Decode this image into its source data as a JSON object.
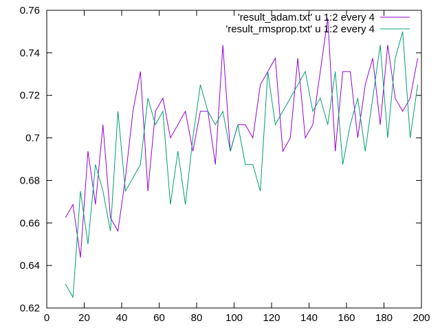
{
  "chart_data": {
    "type": "line",
    "xlim": [
      0,
      200
    ],
    "ylim": [
      0.62,
      0.76
    ],
    "x_ticks": [
      0,
      20,
      40,
      60,
      80,
      100,
      120,
      140,
      160,
      180,
      200
    ],
    "y_ticks": [
      0.62,
      0.64,
      0.66,
      0.68,
      0.7,
      0.72,
      0.74,
      0.76
    ],
    "x_tick_labels": [
      "0",
      "20",
      "40",
      "60",
      "80",
      "100",
      "120",
      "140",
      "160",
      "180",
      "200"
    ],
    "y_tick_labels": [
      "0.62",
      "0.64",
      "0.66",
      "0.68",
      "0.7",
      "0.72",
      "0.74",
      "0.76"
    ],
    "grid": false,
    "legend_position": "top-right",
    "x": [
      10,
      14,
      18,
      22,
      26,
      30,
      34,
      38,
      42,
      46,
      50,
      54,
      58,
      62,
      66,
      70,
      74,
      78,
      82,
      86,
      90,
      94,
      98,
      102,
      106,
      110,
      114,
      118,
      122,
      126,
      130,
      134,
      138,
      142,
      146,
      150,
      154,
      158,
      162,
      166,
      170,
      174,
      178,
      182,
      186,
      190,
      194,
      198
    ],
    "series": [
      {
        "name": "'result_adam.txt' u 1:2 every 4",
        "color": "#9400d3",
        "values": [
          0.6625,
          0.6687,
          0.6437,
          0.6937,
          0.6687,
          0.7062,
          0.6625,
          0.6562,
          0.6812,
          0.7125,
          0.7312,
          0.675,
          0.7125,
          0.7187,
          0.7,
          0.7062,
          0.7125,
          0.6937,
          0.7125,
          0.7125,
          0.6875,
          0.7437,
          0.6937,
          0.7062,
          0.7062,
          0.7,
          0.725,
          0.7312,
          0.7375,
          0.6937,
          0.7,
          0.7375,
          0.7,
          0.7062,
          0.7312,
          0.7562,
          0.6937,
          0.7312,
          0.7312,
          0.7,
          0.725,
          0.7375,
          0.7062,
          0.7437,
          0.7187,
          0.7125,
          0.7187,
          0.7375
        ]
      },
      {
        "name": "'result_rmsprop.txt' u 1:2 every 4",
        "color": "#009e73",
        "values": [
          0.6312,
          0.625,
          0.675,
          0.65,
          0.6875,
          0.675,
          0.6562,
          0.7125,
          0.675,
          0.6812,
          0.6875,
          0.7187,
          0.7062,
          0.7125,
          0.6687,
          0.6937,
          0.6687,
          0.7,
          0.725,
          0.7125,
          0.7062,
          0.7125,
          0.6937,
          0.7062,
          0.6875,
          0.6875,
          0.675,
          0.7312,
          0.7062,
          0.7125,
          0.7187,
          0.725,
          0.7312,
          0.7125,
          0.7187,
          0.7062,
          0.7312,
          0.6875,
          0.7062,
          0.7187,
          0.6937,
          0.7187,
          0.7437,
          0.7,
          0.7375,
          0.75,
          0.7,
          0.725
        ]
      }
    ]
  }
}
